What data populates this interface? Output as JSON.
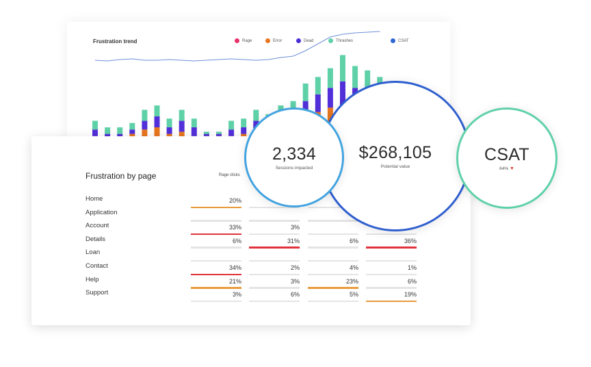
{
  "trend": {
    "title": "Frustration trend",
    "legend": [
      {
        "label": "Rage",
        "color": "#e8336b"
      },
      {
        "label": "Error",
        "color": "#e8761e"
      },
      {
        "label": "Dead",
        "color": "#4b2fd6"
      },
      {
        "label": "Thrashes",
        "color": "#5fd1a8"
      },
      {
        "label": "CSAT",
        "color": "#2f67d4"
      }
    ],
    "bar_colors": {
      "rage": "#e8336b",
      "error": "#e8761e",
      "dead": "#5230d9",
      "thrash": "#5fd1a8"
    },
    "line_color": "#6e8fd8",
    "bars": [
      {
        "rage": 1,
        "error": 0,
        "dead": 3,
        "thrash": 4
      },
      {
        "rage": 0,
        "error": 0,
        "dead": 2,
        "thrash": 3
      },
      {
        "rage": 0,
        "error": 0,
        "dead": 2,
        "thrash": 3
      },
      {
        "rage": 0,
        "error": 2,
        "dead": 2,
        "thrash": 3
      },
      {
        "rage": 0,
        "error": 4,
        "dead": 4,
        "thrash": 5
      },
      {
        "rage": 1,
        "error": 4,
        "dead": 5,
        "thrash": 5
      },
      {
        "rage": 0,
        "error": 2,
        "dead": 3,
        "thrash": 4
      },
      {
        "rage": 0,
        "error": 3,
        "dead": 5,
        "thrash": 5
      },
      {
        "rage": 0,
        "error": 1,
        "dead": 4,
        "thrash": 4
      },
      {
        "rage": 0,
        "error": 1,
        "dead": 1,
        "thrash": 1
      },
      {
        "rage": 0,
        "error": 1,
        "dead": 1,
        "thrash": 1
      },
      {
        "rage": 0,
        "error": 1,
        "dead": 3,
        "thrash": 4
      },
      {
        "rage": 0,
        "error": 2,
        "dead": 3,
        "thrash": 4
      },
      {
        "rage": 0,
        "error": 3,
        "dead": 5,
        "thrash": 5
      },
      {
        "rage": 0,
        "error": 3,
        "dead": 4,
        "thrash": 4
      },
      {
        "rage": 0,
        "error": 5,
        "dead": 5,
        "thrash": 5
      },
      {
        "rage": 0,
        "error": 5,
        "dead": 6,
        "thrash": 6
      },
      {
        "rage": 2,
        "error": 8,
        "dead": 7,
        "thrash": 8
      },
      {
        "rage": 3,
        "error": 9,
        "dead": 8,
        "thrash": 8
      },
      {
        "rage": 4,
        "error": 10,
        "dead": 9,
        "thrash": 9
      },
      {
        "rage": 3,
        "error": 11,
        "dead": 12,
        "thrash": 12
      },
      {
        "rage": 2,
        "error": 10,
        "dead": 11,
        "thrash": 10
      },
      {
        "rage": 2,
        "error": 9,
        "dead": 10,
        "thrash": 10
      },
      {
        "rage": 2,
        "error": 8,
        "dead": 9,
        "thrash": 9
      }
    ],
    "line": [
      86,
      87,
      85,
      84,
      86,
      86,
      85,
      86,
      87,
      86,
      85,
      84,
      85,
      86,
      85,
      82,
      80,
      72,
      62,
      52,
      48,
      46,
      45,
      44
    ]
  },
  "page_table": {
    "title": "Frustration by page",
    "col_header": "Rage clicks",
    "rows": [
      {
        "label": "Home",
        "cells": [
          "20%",
          "",
          "",
          ""
        ],
        "bars": [
          "#e89a3a",
          "",
          "",
          ""
        ]
      },
      {
        "label": "Application",
        "cells": [
          "",
          "",
          "",
          ""
        ],
        "bars": [
          "",
          "",
          "",
          ""
        ]
      },
      {
        "label": "Account",
        "cells": [
          "33%",
          "3%",
          "",
          ""
        ],
        "bars": [
          "#e0323a",
          "",
          "",
          ""
        ]
      },
      {
        "label": "Details",
        "cells": [
          "6%",
          "31%",
          "6%",
          "36%"
        ],
        "bars": [
          "",
          "#e0323a",
          "",
          "#e0323a"
        ]
      },
      {
        "label": "Loan",
        "cells": [
          "",
          "",
          "",
          ""
        ],
        "bars": [
          "",
          "",
          "",
          ""
        ]
      },
      {
        "label": "Contact",
        "cells": [
          "34%",
          "2%",
          "4%",
          "1%"
        ],
        "bars": [
          "#e0323a",
          "",
          "",
          ""
        ]
      },
      {
        "label": "Help",
        "cells": [
          "21%",
          "3%",
          "23%",
          "6%"
        ],
        "bars": [
          "#e89a3a",
          "",
          "#e89a3a",
          ""
        ]
      },
      {
        "label": "Support",
        "cells": [
          "3%",
          "6%",
          "5%",
          "19%"
        ],
        "bars": [
          "",
          "",
          "",
          "#e89a3a"
        ]
      }
    ]
  },
  "metrics": {
    "sessions": {
      "value": "2,334",
      "label": "Sessions impacted",
      "ring_color": "#42a3e0"
    },
    "value": {
      "value": "$268,105",
      "label": "Potential value",
      "ring_color": "#2f5fcf"
    },
    "csat": {
      "value": "CSAT",
      "sub": "64%",
      "trend_arrow": "▼",
      "ring_color": "#5fd1a8",
      "arrow_color": "#d9352b"
    }
  }
}
